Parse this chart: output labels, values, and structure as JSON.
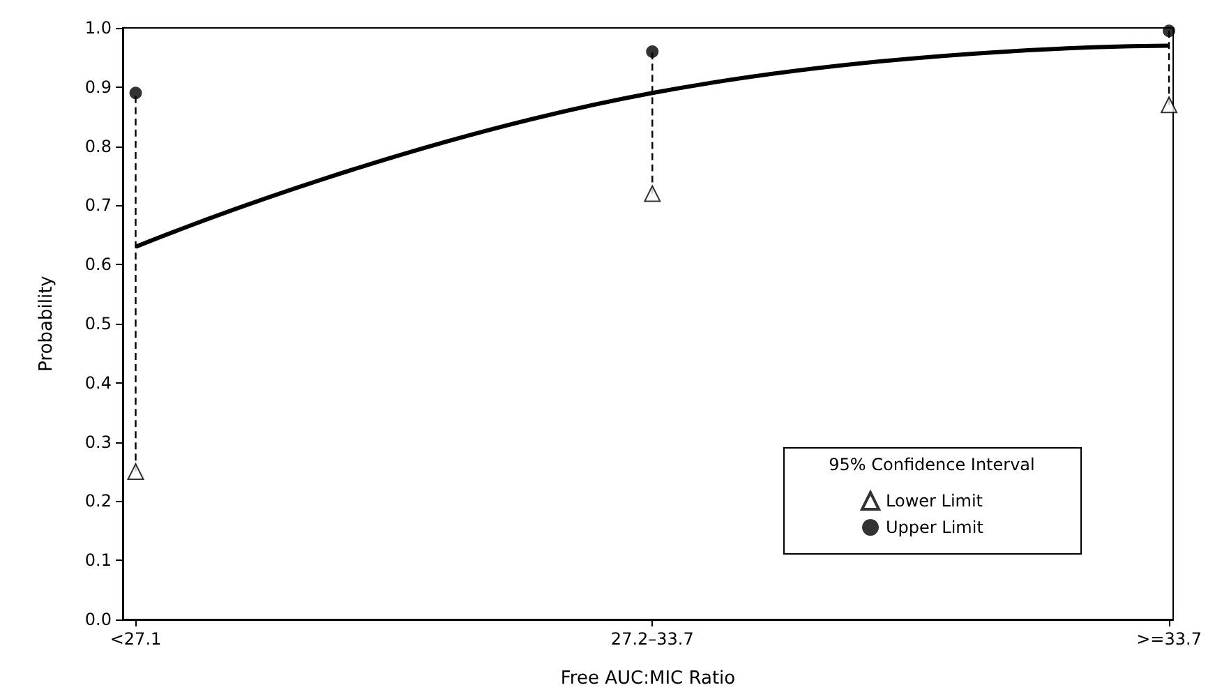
{
  "chart_data": {
    "type": "line",
    "xlabel": "Free AUC:MIC Ratio",
    "ylabel": "Probability",
    "legend_title": "95% Confidence Interval",
    "categories": [
      "<27.1",
      "27.2–33.7",
      ">=33.7"
    ],
    "ylim": [
      0,
      1
    ],
    "yticks": [
      {
        "value": 0,
        "label": "0.0"
      },
      {
        "value": 0.1,
        "label": "0.1"
      },
      {
        "value": 0.2,
        "label": "0.2"
      },
      {
        "value": 0.3,
        "label": "0.3"
      },
      {
        "value": 0.4,
        "label": "0.4"
      },
      {
        "value": 0.5,
        "label": "0.5"
      },
      {
        "value": 0.6,
        "label": "0.6"
      },
      {
        "value": 0.7,
        "label": "0.7"
      },
      {
        "value": 0.8,
        "label": "0.8"
      },
      {
        "value": 0.9,
        "label": "0.9"
      },
      {
        "value": 1,
        "label": "1.0"
      }
    ],
    "grid": false,
    "legend": "bottom right",
    "series": [
      {
        "color": "#000000",
        "values": [
          0.63,
          0.89,
          0.97
        ],
        "marker": "none",
        "line_style": "solid"
      },
      {
        "color": "#000000",
        "x": [
          "<27.1",
          "<27.1"
        ],
        "values": [
          0.25,
          0.89
        ],
        "marker": "none",
        "line_style": "dashed"
      },
      {
        "color": "#000000",
        "x": [
          "27.2–33.7",
          "27.2–33.7"
        ],
        "values": [
          0.72,
          0.96
        ],
        "marker": "none",
        "line_style": "dashed"
      },
      {
        "color": "#000000",
        "x": [
          ">=33.7",
          ">=33.7"
        ],
        "values": [
          0.87,
          0.995
        ],
        "marker": "none",
        "line_style": "dashed"
      },
      {
        "type": "scatter",
        "name": "Lower Limit",
        "color": "#000000",
        "values": [
          0.25,
          0.72,
          0.87
        ],
        "marker": "triangle"
      },
      {
        "type": "scatter",
        "name": "Upper Limit",
        "color": "#000000",
        "values": [
          0.89,
          0.96,
          0.995
        ],
        "marker": "circle"
      }
    ]
  }
}
